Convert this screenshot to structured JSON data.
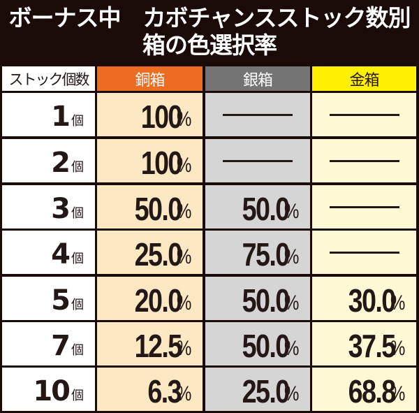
{
  "title": {
    "line1": "ボーナス中　カボチャンスストック数別",
    "line2": "箱の色選択率"
  },
  "table": {
    "headers": {
      "label": "ストック個数",
      "copper": "銅箱",
      "silver": "銀箱",
      "gold": "金箱"
    },
    "unit": "個",
    "dash": "―",
    "rows": [
      {
        "stock": "1",
        "unit": "個",
        "copper": {
          "num": "100",
          "pct": "%"
        },
        "silver": null,
        "gold": null
      },
      {
        "stock": "2",
        "unit": "個",
        "copper": {
          "num": "100",
          "pct": "%"
        },
        "silver": null,
        "gold": null
      },
      {
        "stock": "3",
        "unit": "個",
        "copper": {
          "num": "50.0",
          "pct": "%"
        },
        "silver": {
          "num": "50.0",
          "pct": "%"
        },
        "gold": null
      },
      {
        "stock": "4",
        "unit": "個",
        "copper": {
          "num": "25.0",
          "pct": "%"
        },
        "silver": {
          "num": "75.0",
          "pct": "%"
        },
        "gold": null
      },
      {
        "stock": "5",
        "unit": "個",
        "copper": {
          "num": "20.0",
          "pct": "%"
        },
        "silver": {
          "num": "50.0",
          "pct": "%"
        },
        "gold": {
          "num": "30.0",
          "pct": "%"
        }
      },
      {
        "stock": "7",
        "unit": "個",
        "copper": {
          "num": "12.5",
          "pct": "%"
        },
        "silver": {
          "num": "50.0",
          "pct": "%"
        },
        "gold": {
          "num": "37.5",
          "pct": "%"
        }
      },
      {
        "stock": "10",
        "unit": "個",
        "copper": {
          "num": "6.3",
          "pct": "%"
        },
        "silver": {
          "num": "25.0",
          "pct": "%"
        },
        "gold": {
          "num": "68.8",
          "pct": "%"
        }
      }
    ]
  },
  "colors": {
    "background": "#1a0b08",
    "header_copper": "#ec6c22",
    "header_silver": "#747474",
    "header_gold": "#fff100",
    "cell_copper": "#fde8c4",
    "cell_silver": "#d5d5d5",
    "cell_gold": "#fffad5",
    "text": "#231815"
  }
}
